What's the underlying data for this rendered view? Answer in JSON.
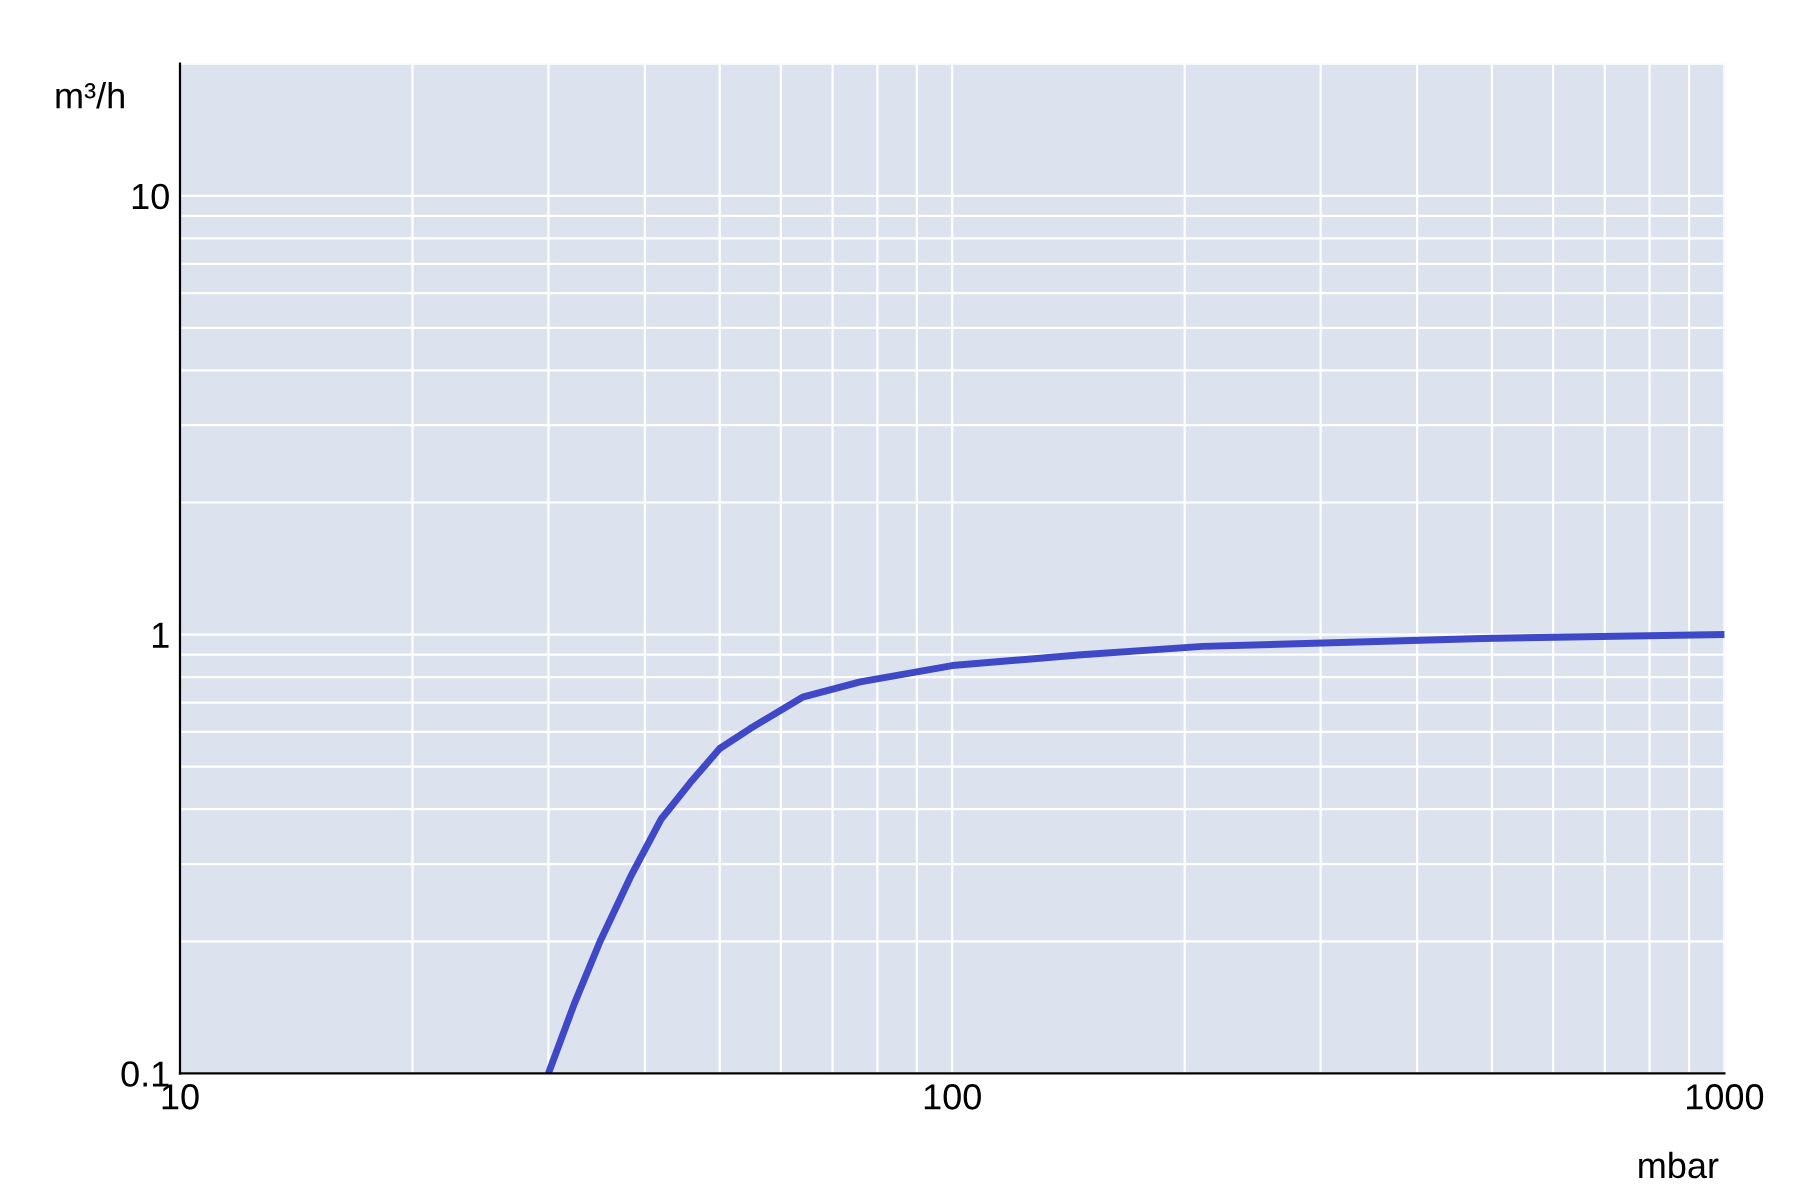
{
  "chart_data": {
    "type": "line",
    "xlabel": "mbar",
    "ylabel": "m³/h",
    "log": "xy",
    "grid": true,
    "xlim": [
      10,
      1000
    ],
    "xticks": [
      10,
      100,
      1000
    ],
    "ylim": [
      0.1,
      20
    ],
    "yticks": [
      0.1,
      1,
      10
    ],
    "series": [
      {
        "color": "#3f48c6",
        "x": [
          30,
          32.4,
          35,
          38.3,
          42,
          45.8,
          50,
          54.7,
          64,
          76,
          100,
          147,
          211,
          486,
          1000
        ],
        "values": [
          0.1,
          0.144,
          0.2,
          0.28,
          0.38,
          0.46,
          0.55,
          0.61,
          0.72,
          0.78,
          0.85,
          0.9,
          0.94,
          0.98,
          1.0
        ]
      }
    ]
  }
}
